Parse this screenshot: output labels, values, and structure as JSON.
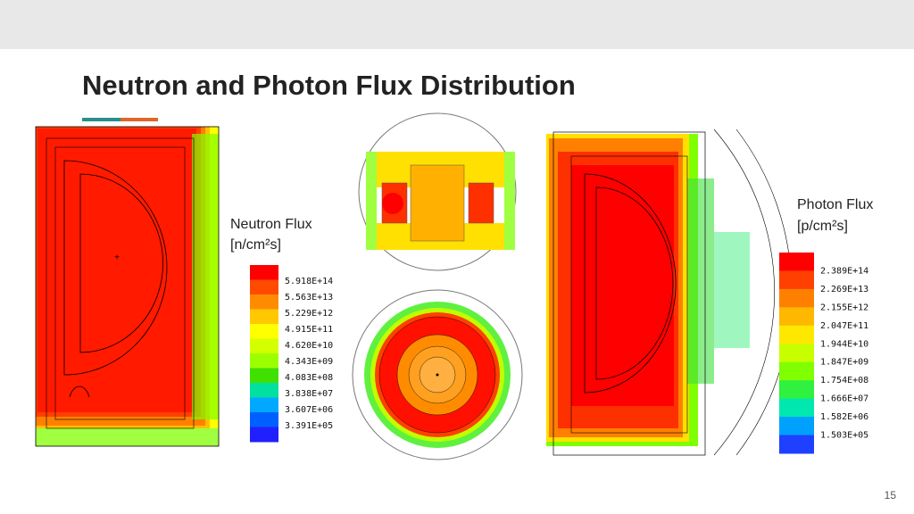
{
  "title": "Neutron and Photon Flux Distribution",
  "neutron_legend": {
    "heading": "Neutron Flux",
    "unit": "[n/cm²s]",
    "labels": [
      "5.918E+14",
      "5.563E+13",
      "5.229E+12",
      "4.915E+11",
      "4.620E+10",
      "4.343E+09",
      "4.083E+08",
      "3.838E+07",
      "3.607E+06",
      "3.391E+05"
    ],
    "colors": [
      "#ff0000",
      "#ff4a00",
      "#ff8c00",
      "#ffc800",
      "#ffff00",
      "#d4ff00",
      "#9cff00",
      "#40e000",
      "#00e0a0",
      "#00a8ff",
      "#0060ff",
      "#2020ff"
    ]
  },
  "photon_legend": {
    "heading": "Photon Flux",
    "unit": "[p/cm²s]",
    "labels": [
      "2.389E+14",
      "2.269E+13",
      "2.155E+12",
      "2.047E+11",
      "1.944E+10",
      "1.847E+09",
      "1.754E+08",
      "1.666E+07",
      "1.582E+06",
      "1.503E+05"
    ],
    "colors": [
      "#ff0000",
      "#ff4000",
      "#ff8000",
      "#ffb800",
      "#ffe800",
      "#c8ff00",
      "#80ff00",
      "#30f040",
      "#00e8b0",
      "#00a0ff",
      "#2040ff"
    ]
  },
  "page_number": "15"
}
